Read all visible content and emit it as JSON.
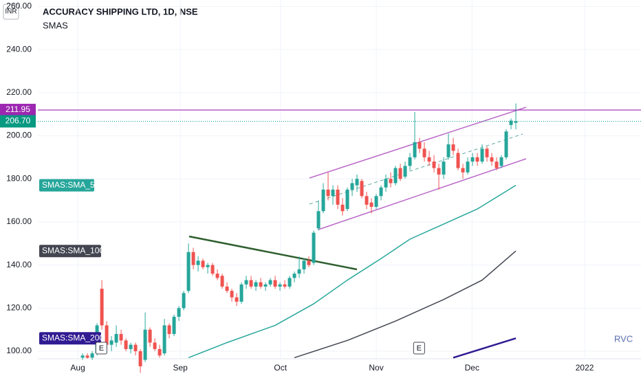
{
  "chart_data": {
    "type": "candlestick",
    "title": "ACCURACY SHIPPING LTD, 1D, NSE",
    "subtitle": "SMAS",
    "currency": "INR",
    "watermark": "RVC",
    "event_marker": "E",
    "up_color": "#26a69a",
    "down_color": "#ef5350",
    "grid": true,
    "xlim": [
      -9.3,
      116
    ],
    "xticks": [
      {
        "value": -1,
        "label": "Aug"
      },
      {
        "value": 20.3,
        "label": "Sep"
      },
      {
        "value": 41.1,
        "label": "Oct"
      },
      {
        "value": 61,
        "label": "Nov"
      },
      {
        "value": 80.9,
        "label": "Dec"
      },
      {
        "value": 104.3,
        "label": "2022"
      }
    ],
    "ylim": [
      96.5,
      263
    ],
    "yticks": [
      {
        "value": 100,
        "label": "100.00"
      },
      {
        "value": 120,
        "label": "120.00"
      },
      {
        "value": 140,
        "label": "140.00"
      },
      {
        "value": 160,
        "label": "160.00"
      },
      {
        "value": 180,
        "label": "180.00"
      },
      {
        "value": 200,
        "label": "200.00"
      },
      {
        "value": 220,
        "label": "220.00"
      },
      {
        "value": 240,
        "label": "240.00"
      },
      {
        "value": 260,
        "label": "260.00"
      }
    ],
    "open": [
      97,
      98,
      97,
      99,
      129,
      112,
      103,
      104,
      108,
      105,
      101,
      103,
      100,
      96,
      110,
      104,
      101,
      99,
      112,
      108,
      116,
      120,
      128,
      146,
      140,
      142,
      139,
      140,
      136,
      135,
      130,
      128,
      125,
      123,
      131,
      133,
      130,
      132,
      130,
      131,
      133,
      130,
      131,
      130,
      134,
      136,
      138,
      142,
      141,
      157,
      165,
      175,
      172,
      175,
      168,
      166,
      175,
      177,
      179,
      172,
      169,
      167,
      172,
      176,
      180,
      178,
      185,
      181,
      186,
      190,
      197,
      194,
      190,
      188,
      185,
      182,
      190,
      196,
      192,
      185,
      183,
      188,
      190,
      188,
      194,
      190,
      188,
      186,
      190,
      205,
      206
    ],
    "high": [
      99,
      99,
      100,
      113,
      133,
      114,
      107,
      112,
      110,
      106,
      104,
      104,
      101,
      118,
      111,
      106,
      103,
      115,
      113,
      117,
      121,
      128,
      150,
      148,
      144,
      143,
      141,
      141,
      138,
      136,
      132,
      129,
      127,
      132,
      135,
      135,
      133,
      134,
      132,
      134,
      135,
      132,
      133,
      135,
      137,
      144,
      143,
      144,
      156,
      170,
      178,
      183,
      177,
      177,
      171,
      176,
      180,
      182,
      180,
      174,
      171,
      173,
      177,
      182,
      183,
      186,
      187,
      188,
      192,
      211,
      199,
      197,
      193,
      191,
      187,
      190,
      201,
      199,
      194,
      187,
      190,
      192,
      192,
      196,
      195,
      192,
      190,
      191,
      203,
      208,
      215
    ],
    "low": [
      96,
      96.5,
      96,
      98,
      110,
      101,
      100,
      102,
      103,
      100,
      99,
      98,
      90,
      95,
      102,
      100,
      97,
      98,
      106,
      107,
      114,
      119,
      127,
      138,
      137,
      138,
      136,
      135,
      133,
      129,
      127,
      123,
      121,
      122,
      129,
      129,
      128,
      129,
      128,
      130,
      129,
      128,
      129,
      129,
      132,
      134,
      136,
      139,
      140,
      156,
      164,
      170,
      168,
      166,
      163,
      165,
      172,
      174,
      171,
      166,
      164,
      166,
      170,
      174,
      176,
      177,
      179,
      180,
      184,
      189,
      192,
      188,
      186,
      183,
      175,
      180,
      189,
      191,
      184,
      180,
      182,
      186,
      186,
      187,
      188,
      186,
      184,
      185,
      189,
      203,
      203
    ],
    "close": [
      98,
      97,
      99,
      112,
      112,
      103,
      105,
      108,
      105,
      101,
      103,
      100,
      93,
      110,
      104,
      101,
      98,
      112,
      108,
      116,
      120,
      127,
      146,
      140,
      142,
      139,
      140,
      136,
      134,
      130,
      128,
      125,
      123,
      131,
      133,
      130,
      132,
      130,
      131,
      133,
      130,
      131,
      130,
      134,
      136,
      138,
      142,
      140,
      155,
      165,
      175,
      172,
      175,
      168,
      165,
      175,
      178,
      180,
      172,
      168,
      167,
      172,
      176,
      180,
      178,
      185,
      180,
      186,
      190,
      197,
      194,
      190,
      188,
      185,
      182,
      188,
      196,
      193,
      185,
      183,
      188,
      190,
      188,
      194,
      190,
      188,
      185,
      190,
      202,
      207,
      206.7
    ],
    "lines": [
      {
        "name": "SMAS:SMA_50",
        "color": "#26a69a",
        "x": [
          22,
          30,
          40,
          48,
          55,
          62,
          68,
          75,
          82,
          90
        ],
        "values": [
          97,
          104,
          112,
          122,
          133,
          143,
          152,
          159,
          166,
          177
        ]
      },
      {
        "name": "SMAS:SMA_100",
        "color": "#434651",
        "x": [
          44,
          55,
          65,
          75,
          83,
          90
        ],
        "values": [
          97,
          105,
          114,
          124,
          133,
          146.5
        ]
      },
      {
        "name": "SMAS:SMA_200",
        "color": "#311b92",
        "x": [
          77,
          90
        ],
        "values": [
          97,
          106
        ]
      }
    ],
    "price_lines": [
      {
        "value": 211.95,
        "color": "#9c27b0",
        "style": "solid"
      },
      {
        "value": 206.7,
        "label": "206.70",
        "color": "#089981",
        "style": "dotted"
      }
    ],
    "events_x": [
      3.9,
      69.9
    ]
  }
}
